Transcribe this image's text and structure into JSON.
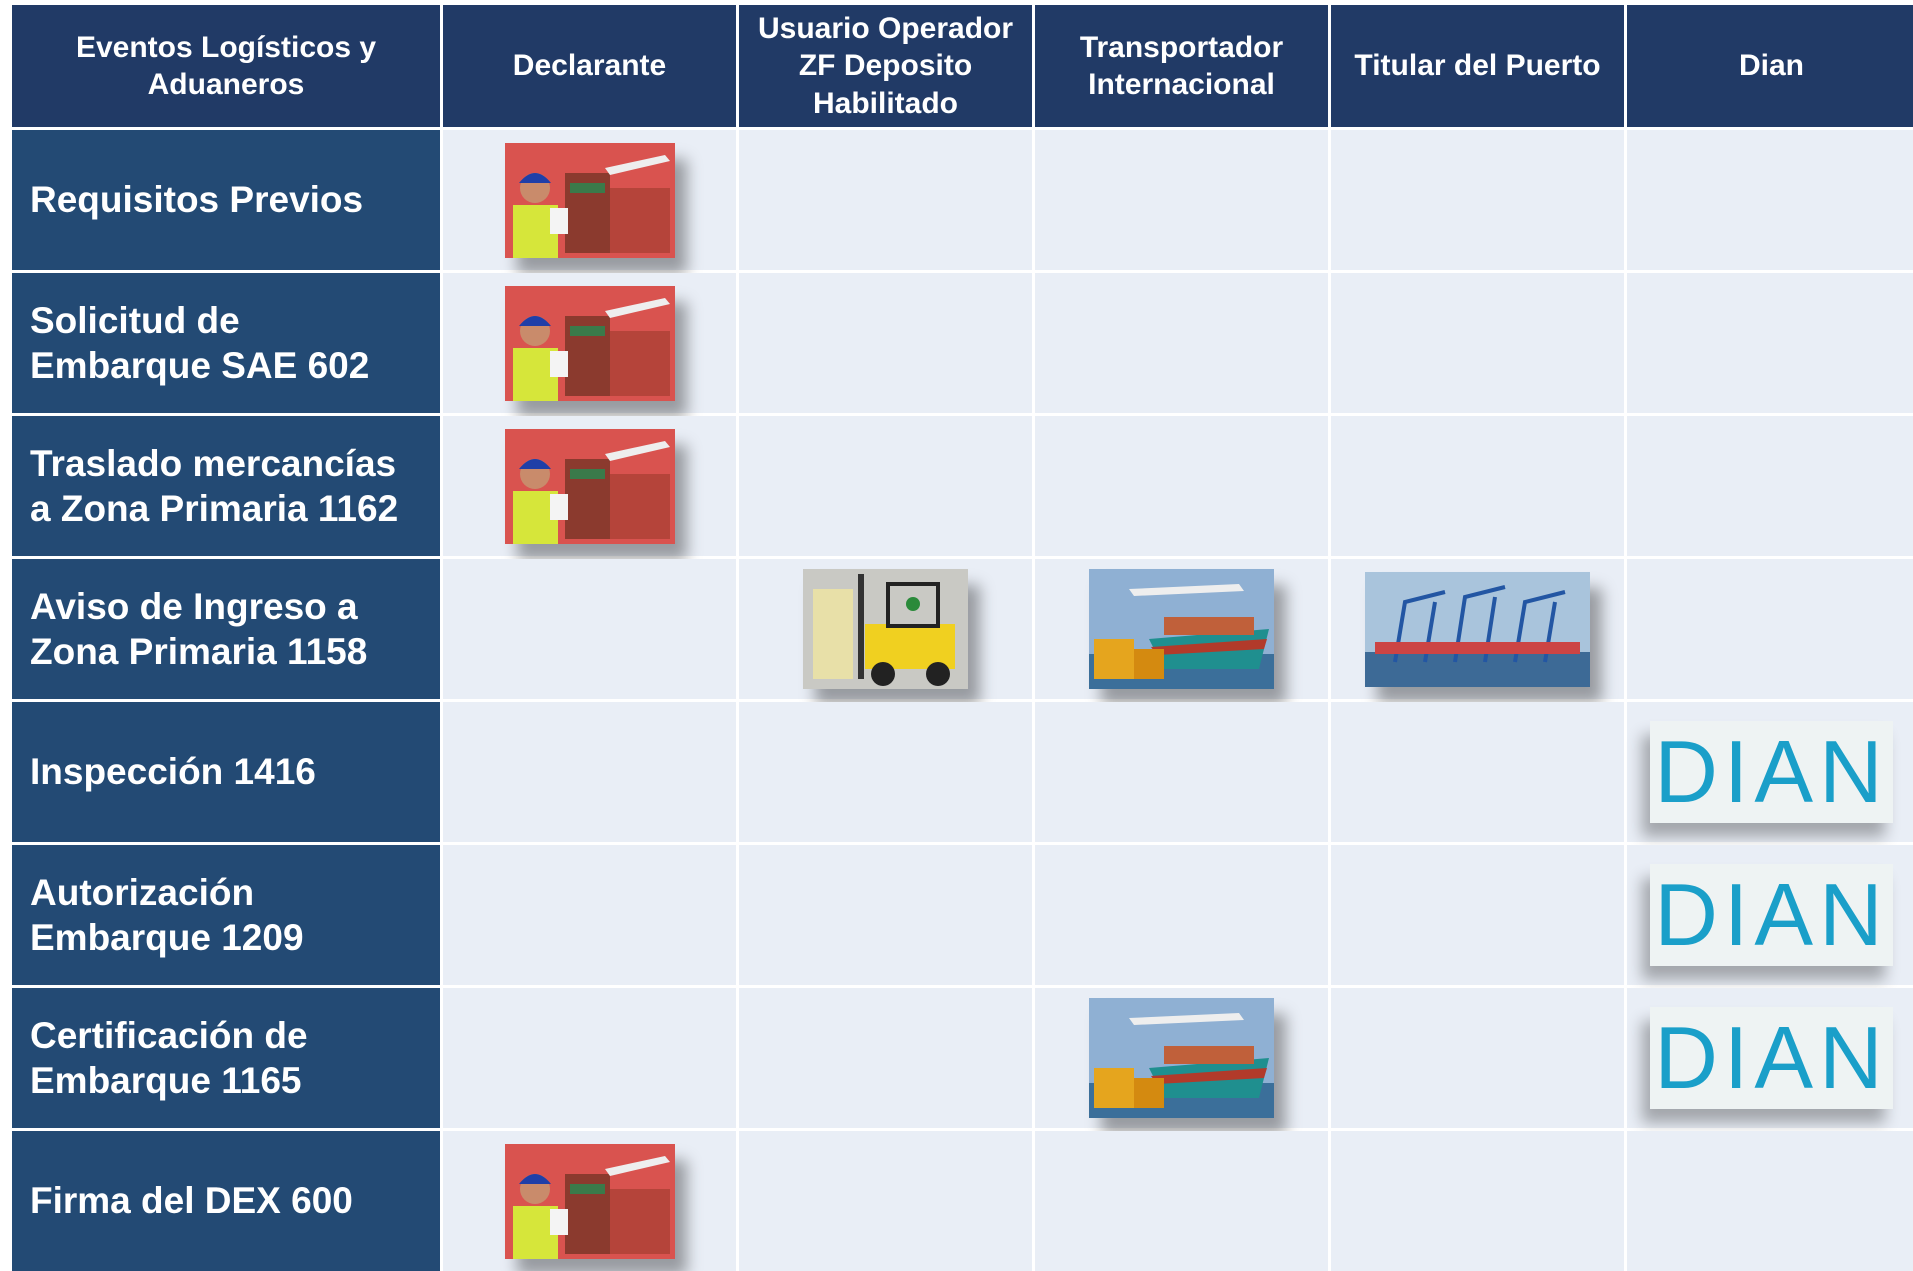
{
  "table": {
    "header": [
      "Eventos Logísticos y Aduaneros",
      "Declarante",
      "Usuario Operador ZF Deposito Habilitado",
      "Transportador Internacional",
      "Titular del Puerto",
      "Dian"
    ],
    "rows": [
      "Requisitos Previos",
      "Solicitud de Embarque SAE 602",
      "Traslado mercancías a Zona Primaria 1162",
      "Aviso de Ingreso a Zona Primaria 1158",
      "Inspección 1416",
      "Autorización Embarque 1209",
      "Certificación de Embarque 1165",
      "Firma del DEX 600"
    ],
    "logo": "DIAN"
  }
}
